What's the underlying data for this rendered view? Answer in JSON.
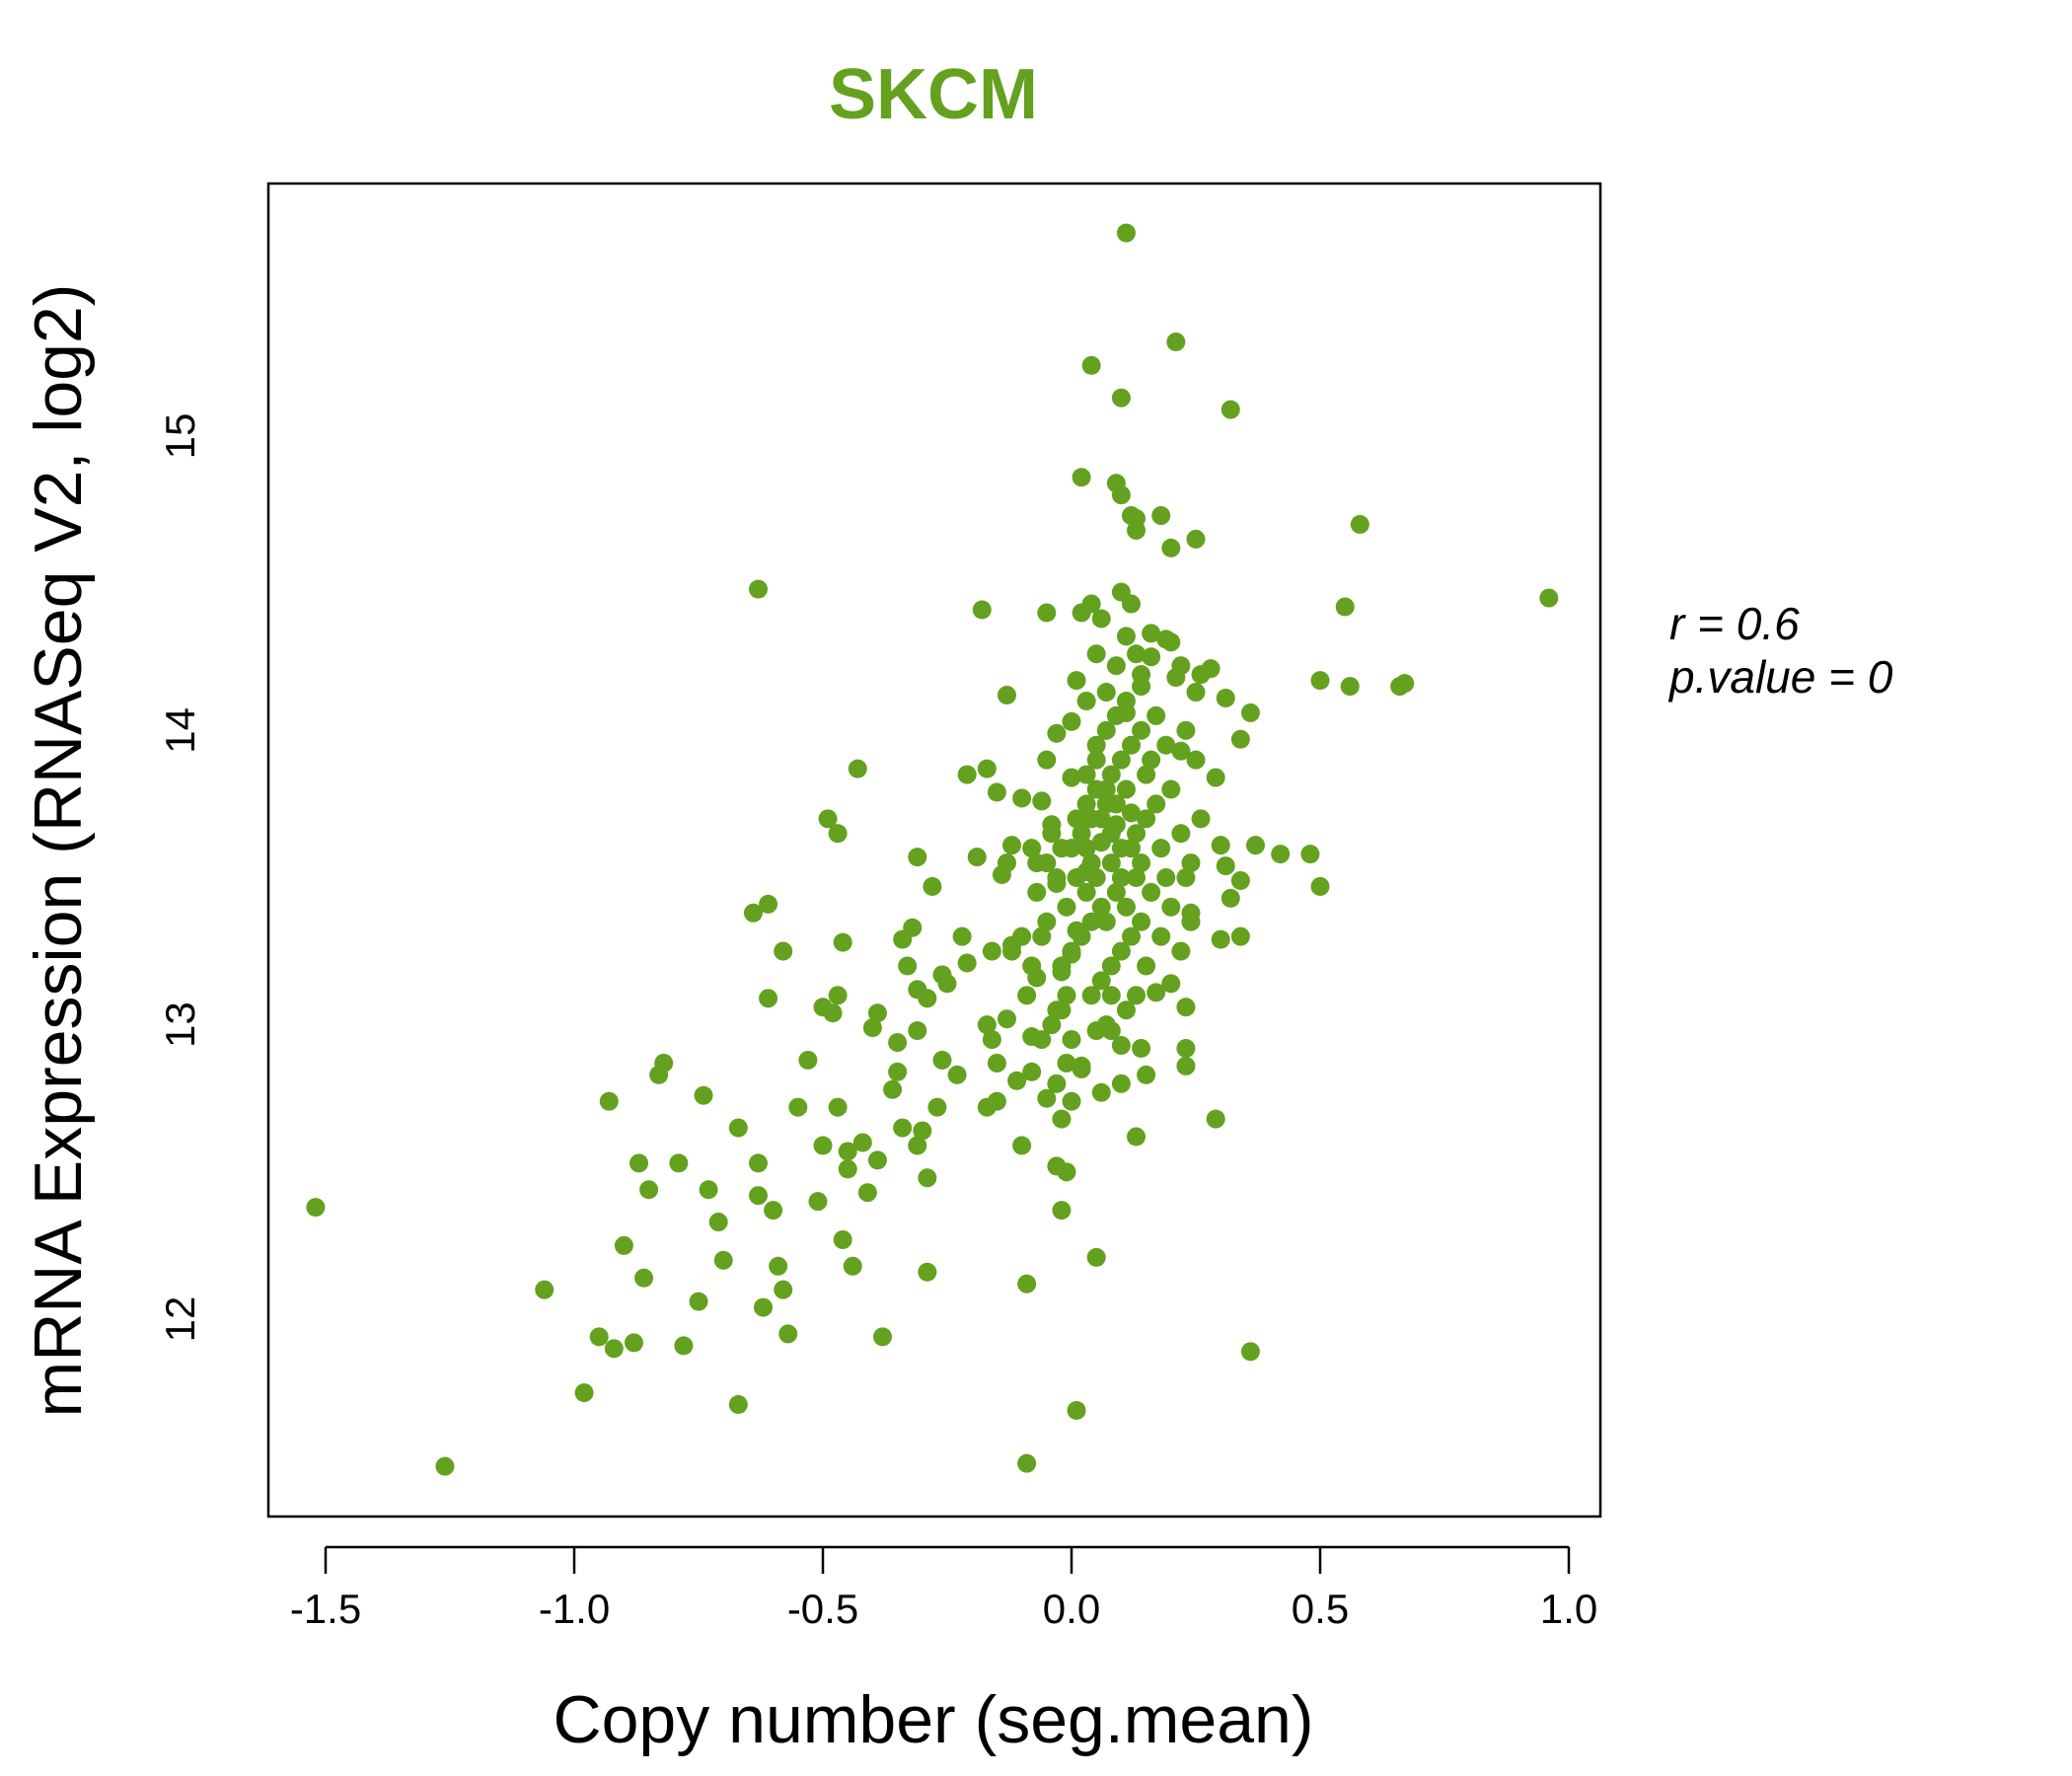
{
  "chart_data": {
    "type": "scatter",
    "title": "SKCM",
    "xlabel": "Copy number (seg.mean)",
    "ylabel": "mRNA Expression (RNASeq V2, log2)",
    "xlim": [
      -1.6,
      1.08
    ],
    "ylim": [
      11.35,
      15.88
    ],
    "xticks": [
      -1.5,
      -1.0,
      -0.5,
      0.0,
      0.5,
      1.0
    ],
    "xtick_labels": [
      "-1.5",
      "-1.0",
      "-0.5",
      "0.0",
      "0.5",
      "1.0"
    ],
    "yticks": [
      12,
      13,
      14,
      15
    ],
    "ytick_labels": [
      "12",
      "13",
      "14",
      "15"
    ],
    "grid": false,
    "color": "#63a11f",
    "annotations": {
      "r": "r = 0.6",
      "p": "p.value = 0"
    },
    "points": [
      [
        -1.52,
        12.38
      ],
      [
        -1.26,
        11.5
      ],
      [
        -1.06,
        12.1
      ],
      [
        -0.98,
        11.75
      ],
      [
        -0.95,
        11.94
      ],
      [
        -0.92,
        11.9
      ],
      [
        -0.93,
        12.74
      ],
      [
        -0.9,
        12.25
      ],
      [
        -0.88,
        11.92
      ],
      [
        -0.87,
        12.53
      ],
      [
        -0.86,
        12.14
      ],
      [
        -0.85,
        12.44
      ],
      [
        -0.83,
        12.83
      ],
      [
        -0.82,
        12.87
      ],
      [
        -0.79,
        12.53
      ],
      [
        -0.78,
        11.91
      ],
      [
        -0.75,
        12.06
      ],
      [
        -0.74,
        12.76
      ],
      [
        -0.73,
        12.44
      ],
      [
        -0.71,
        12.33
      ],
      [
        -0.7,
        12.2
      ],
      [
        -0.67,
        12.65
      ],
      [
        -0.67,
        11.71
      ],
      [
        -0.64,
        13.38
      ],
      [
        -0.63,
        14.48
      ],
      [
        -0.63,
        12.42
      ],
      [
        -0.63,
        12.53
      ],
      [
        -0.62,
        12.04
      ],
      [
        -0.61,
        13.41
      ],
      [
        -0.61,
        13.09
      ],
      [
        -0.6,
        12.37
      ],
      [
        -0.59,
        12.18
      ],
      [
        -0.58,
        12.1
      ],
      [
        -0.58,
        13.25
      ],
      [
        -0.57,
        11.95
      ],
      [
        -0.55,
        12.72
      ],
      [
        -0.53,
        12.88
      ],
      [
        -0.51,
        12.4
      ],
      [
        -0.5,
        12.59
      ],
      [
        -0.5,
        13.06
      ],
      [
        -0.49,
        13.7
      ],
      [
        -0.48,
        13.04
      ],
      [
        -0.47,
        13.1
      ],
      [
        -0.47,
        12.72
      ],
      [
        -0.47,
        13.65
      ],
      [
        -0.46,
        12.27
      ],
      [
        -0.46,
        13.28
      ],
      [
        -0.45,
        12.57
      ],
      [
        -0.45,
        12.51
      ],
      [
        -0.44,
        12.18
      ],
      [
        -0.43,
        13.87
      ],
      [
        -0.42,
        12.6
      ],
      [
        -0.41,
        12.43
      ],
      [
        -0.4,
        12.99
      ],
      [
        -0.39,
        12.54
      ],
      [
        -0.39,
        13.04
      ],
      [
        -0.38,
        11.94
      ],
      [
        -0.36,
        12.78
      ],
      [
        -0.35,
        12.84
      ],
      [
        -0.35,
        12.94
      ],
      [
        -0.34,
        12.65
      ],
      [
        -0.34,
        13.29
      ],
      [
        -0.33,
        13.2
      ],
      [
        -0.32,
        13.33
      ],
      [
        -0.31,
        12.59
      ],
      [
        -0.31,
        12.98
      ],
      [
        -0.31,
        13.12
      ],
      [
        -0.31,
        13.57
      ],
      [
        -0.3,
        12.64
      ],
      [
        -0.29,
        12.48
      ],
      [
        -0.29,
        13.09
      ],
      [
        -0.29,
        12.16
      ],
      [
        -0.28,
        13.47
      ],
      [
        -0.27,
        12.72
      ],
      [
        -0.26,
        13.17
      ],
      [
        -0.26,
        12.88
      ],
      [
        -0.25,
        13.14
      ],
      [
        -0.23,
        12.83
      ],
      [
        -0.22,
        13.3
      ],
      [
        -0.21,
        13.85
      ],
      [
        -0.21,
        13.21
      ],
      [
        -0.19,
        13.57
      ],
      [
        -0.18,
        14.41
      ],
      [
        -0.17,
        13.87
      ],
      [
        -0.17,
        12.72
      ],
      [
        -0.17,
        13.0
      ],
      [
        -0.16,
        13.25
      ],
      [
        -0.16,
        12.95
      ],
      [
        -0.15,
        12.74
      ],
      [
        -0.15,
        13.79
      ],
      [
        -0.15,
        12.87
      ],
      [
        -0.14,
        13.51
      ],
      [
        -0.13,
        13.55
      ],
      [
        -0.13,
        13.02
      ],
      [
        -0.13,
        14.12
      ],
      [
        -0.12,
        13.61
      ],
      [
        -0.12,
        13.27
      ],
      [
        -0.11,
        12.81
      ],
      [
        -0.1,
        13.77
      ],
      [
        -0.1,
        12.59
      ],
      [
        -0.09,
        13.1
      ],
      [
        -0.09,
        12.12
      ],
      [
        -0.09,
        11.51
      ],
      [
        -0.08,
        13.6
      ],
      [
        -0.08,
        12.96
      ],
      [
        -0.08,
        12.84
      ],
      [
        -0.07,
        13.55
      ],
      [
        -0.07,
        13.16
      ],
      [
        -0.06,
        13.76
      ],
      [
        -0.05,
        13.9
      ],
      [
        -0.05,
        13.35
      ],
      [
        -0.05,
        14.4
      ],
      [
        -0.05,
        12.75
      ],
      [
        -0.04,
        13.68
      ],
      [
        -0.03,
        13.48
      ],
      [
        -0.03,
        12.52
      ],
      [
        -0.03,
        13.99
      ],
      [
        -0.02,
        13.05
      ],
      [
        -0.02,
        12.68
      ],
      [
        -0.02,
        12.37
      ],
      [
        -0.02,
        13.18
      ],
      [
        -0.01,
        12.5
      ],
      [
        -0.01,
        12.87
      ],
      [
        0.0,
        13.84
      ],
      [
        0.0,
        13.24
      ],
      [
        0.0,
        14.03
      ],
      [
        0.0,
        12.74
      ],
      [
        0.01,
        13.32
      ],
      [
        0.01,
        14.17
      ],
      [
        0.01,
        11.69
      ],
      [
        0.02,
        12.86
      ],
      [
        0.02,
        14.86
      ],
      [
        0.02,
        14.4
      ],
      [
        0.03,
        13.52
      ],
      [
        0.03,
        14.1
      ],
      [
        0.04,
        15.24
      ],
      [
        0.04,
        14.43
      ],
      [
        0.05,
        12.21
      ],
      [
        0.05,
        14.26
      ],
      [
        0.05,
        12.98
      ],
      [
        0.06,
        12.77
      ],
      [
        0.06,
        14.38
      ],
      [
        0.07,
        13.8
      ],
      [
        0.07,
        14.13
      ],
      [
        0.08,
        13.1
      ],
      [
        0.08,
        12.98
      ],
      [
        0.09,
        14.22
      ],
      [
        0.09,
        14.84
      ],
      [
        0.1,
        15.13
      ],
      [
        0.1,
        14.8
      ],
      [
        0.1,
        12.93
      ],
      [
        0.1,
        14.47
      ],
      [
        0.1,
        12.8
      ],
      [
        0.11,
        15.69
      ],
      [
        0.11,
        14.32
      ],
      [
        0.11,
        14.06
      ],
      [
        0.12,
        14.73
      ],
      [
        0.12,
        14.43
      ],
      [
        0.13,
        12.62
      ],
      [
        0.13,
        14.68
      ],
      [
        0.13,
        14.26
      ],
      [
        0.13,
        14.72
      ],
      [
        0.14,
        12.92
      ],
      [
        0.14,
        14.19
      ],
      [
        0.15,
        12.83
      ],
      [
        0.16,
        14.33
      ],
      [
        0.17,
        13.11
      ],
      [
        0.18,
        14.73
      ],
      [
        0.19,
        14.31
      ],
      [
        0.2,
        13.14
      ],
      [
        0.2,
        14.62
      ],
      [
        0.21,
        15.32
      ],
      [
        0.21,
        14.18
      ],
      [
        0.22,
        13.93
      ],
      [
        0.22,
        14.22
      ],
      [
        0.23,
        13.5
      ],
      [
        0.23,
        13.06
      ],
      [
        0.23,
        12.92
      ],
      [
        0.23,
        12.86
      ],
      [
        0.24,
        13.38
      ],
      [
        0.25,
        14.65
      ],
      [
        0.25,
        14.13
      ],
      [
        0.26,
        14.19
      ],
      [
        0.28,
        14.21
      ],
      [
        0.29,
        12.68
      ],
      [
        0.29,
        13.84
      ],
      [
        0.3,
        13.61
      ],
      [
        0.3,
        13.29
      ],
      [
        0.31,
        13.54
      ],
      [
        0.31,
        14.11
      ],
      [
        0.32,
        13.43
      ],
      [
        0.32,
        15.09
      ],
      [
        0.34,
        13.3
      ],
      [
        0.34,
        13.97
      ],
      [
        0.34,
        13.49
      ],
      [
        0.36,
        11.89
      ],
      [
        0.36,
        14.06
      ],
      [
        0.37,
        13.61
      ],
      [
        0.42,
        13.58
      ],
      [
        0.48,
        13.58
      ],
      [
        0.5,
        14.17
      ],
      [
        0.5,
        13.47
      ],
      [
        0.55,
        14.42
      ],
      [
        0.56,
        14.15
      ],
      [
        0.58,
        14.7
      ],
      [
        0.66,
        14.15
      ],
      [
        0.67,
        14.16
      ],
      [
        0.96,
        14.45
      ],
      [
        0.0,
        13.6
      ],
      [
        0.02,
        13.65
      ],
      [
        0.04,
        13.7
      ],
      [
        0.06,
        13.62
      ],
      [
        0.08,
        13.55
      ],
      [
        0.05,
        13.5
      ],
      [
        0.03,
        13.45
      ],
      [
        0.07,
        13.75
      ],
      [
        0.09,
        13.68
      ],
      [
        0.1,
        13.6
      ],
      [
        0.12,
        13.72
      ],
      [
        0.11,
        13.8
      ],
      [
        0.13,
        13.65
      ],
      [
        0.14,
        13.55
      ],
      [
        0.06,
        13.4
      ],
      [
        0.04,
        13.35
      ],
      [
        0.02,
        13.3
      ],
      [
        0.0,
        13.25
      ],
      [
        -0.02,
        13.2
      ],
      [
        -0.01,
        13.4
      ],
      [
        0.01,
        13.5
      ],
      [
        0.08,
        13.85
      ],
      [
        0.1,
        13.9
      ],
      [
        0.12,
        13.95
      ],
      [
        0.05,
        13.9
      ],
      [
        0.03,
        13.85
      ],
      [
        -0.02,
        13.6
      ],
      [
        -0.04,
        13.65
      ],
      [
        -0.03,
        13.5
      ],
      [
        0.15,
        13.7
      ],
      [
        0.17,
        13.75
      ],
      [
        0.18,
        13.6
      ],
      [
        0.16,
        13.45
      ],
      [
        0.14,
        13.35
      ],
      [
        0.12,
        13.3
      ],
      [
        0.1,
        13.25
      ],
      [
        0.08,
        13.2
      ],
      [
        0.06,
        13.15
      ],
      [
        0.04,
        13.1
      ],
      [
        -0.01,
        13.1
      ],
      [
        -0.03,
        13.05
      ],
      [
        0.2,
        13.8
      ],
      [
        0.22,
        13.65
      ],
      [
        0.19,
        13.5
      ],
      [
        0.2,
        13.4
      ],
      [
        0.18,
        13.3
      ],
      [
        0.15,
        13.2
      ],
      [
        0.13,
        13.1
      ],
      [
        0.11,
        13.05
      ],
      [
        0.07,
        13.0
      ],
      [
        0.09,
        13.45
      ],
      [
        0.07,
        13.35
      ],
      [
        0.11,
        13.4
      ],
      [
        0.13,
        13.5
      ],
      [
        0.05,
        13.95
      ],
      [
        0.07,
        14.0
      ],
      [
        0.09,
        14.05
      ],
      [
        0.11,
        14.1
      ],
      [
        0.14,
        14.0
      ],
      [
        0.16,
        13.9
      ],
      [
        0.19,
        13.95
      ],
      [
        0.24,
        13.55
      ],
      [
        0.26,
        13.7
      ],
      [
        0.22,
        13.25
      ],
      [
        0.24,
        13.35
      ],
      [
        -0.06,
        13.3
      ],
      [
        -0.08,
        13.2
      ],
      [
        -0.07,
        13.45
      ],
      [
        -0.05,
        13.55
      ],
      [
        -0.1,
        13.3
      ],
      [
        -0.12,
        13.25
      ],
      [
        -0.04,
        13.0
      ],
      [
        -0.06,
        12.95
      ],
      [
        0.0,
        12.95
      ],
      [
        0.02,
        12.85
      ],
      [
        -0.03,
        12.8
      ],
      [
        0.03,
        13.6
      ],
      [
        0.06,
        13.7
      ],
      [
        0.09,
        13.75
      ],
      [
        0.01,
        13.7
      ],
      [
        0.04,
        13.55
      ],
      [
        0.08,
        13.65
      ],
      [
        0.12,
        13.6
      ],
      [
        0.05,
        13.8
      ],
      [
        0.1,
        13.5
      ],
      [
        0.03,
        13.75
      ],
      [
        0.15,
        13.85
      ],
      [
        0.17,
        14.05
      ],
      [
        0.2,
        14.3
      ],
      [
        0.14,
        14.15
      ],
      [
        0.16,
        14.25
      ],
      [
        0.23,
        14.0
      ],
      [
        0.25,
        13.9
      ]
    ]
  }
}
